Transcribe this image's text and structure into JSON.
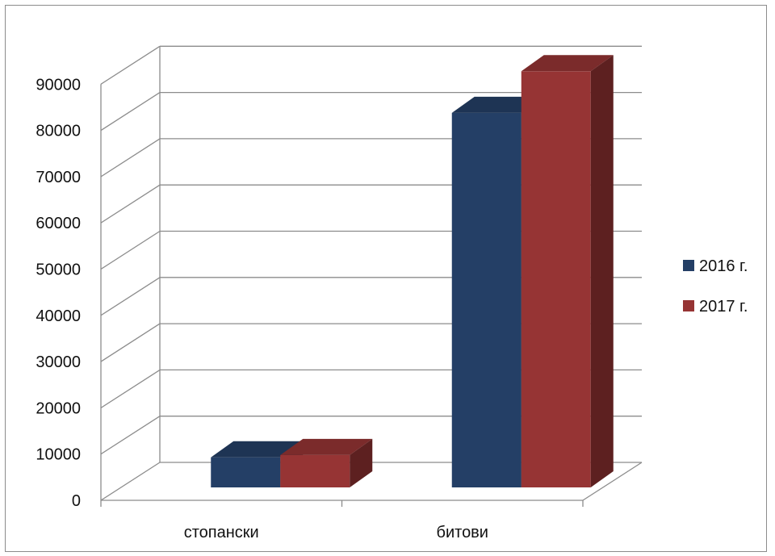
{
  "chart_data": {
    "type": "bar",
    "style": "3d-clustered-column",
    "categories": [
      "стопански",
      "битови"
    ],
    "series": [
      {
        "name": "2016 г.",
        "values": [
          6500,
          81000
        ],
        "color": "#243f66"
      },
      {
        "name": "2017 г.",
        "values": [
          7000,
          90000
        ],
        "color": "#963434"
      }
    ],
    "yticks": [
      "0",
      "10000",
      "20000",
      "30000",
      "40000",
      "50000",
      "60000",
      "70000",
      "80000",
      "90000"
    ],
    "ylim": [
      0,
      90000
    ],
    "ystep": 10000,
    "grid": true,
    "legend": "right"
  }
}
